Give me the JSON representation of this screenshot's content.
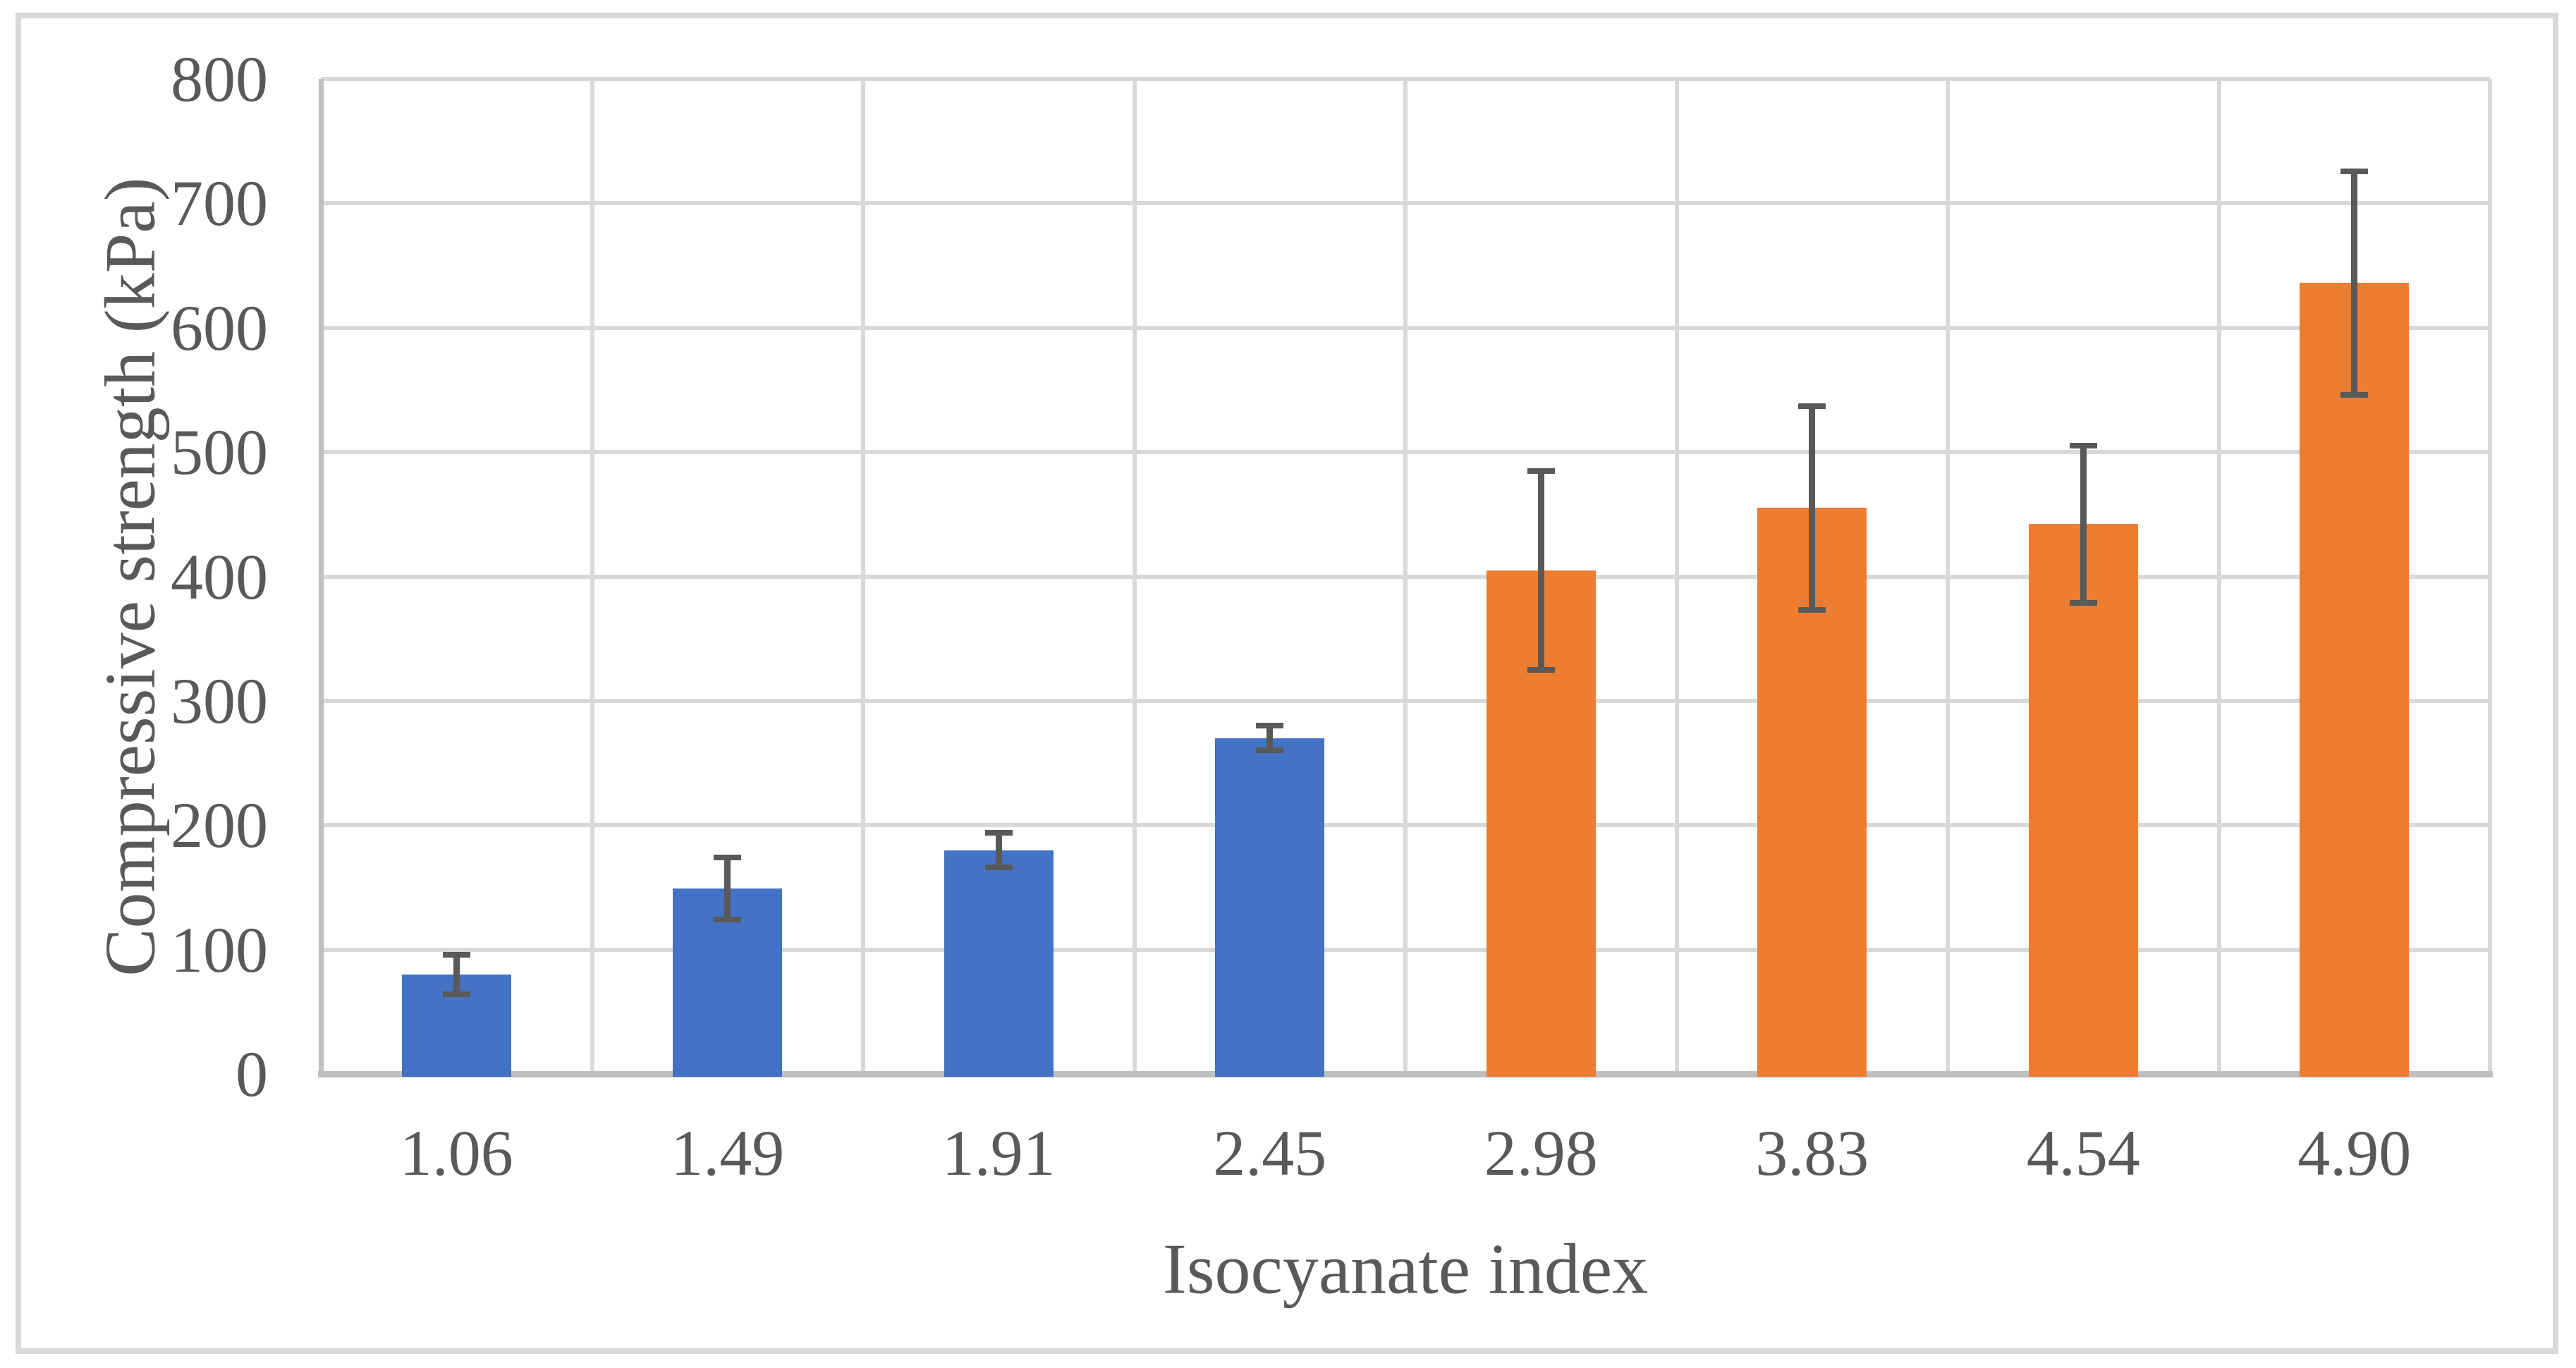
{
  "figure": {
    "background_color": "#ffffff",
    "border_color": "#d9d9d9"
  },
  "chart_data": {
    "type": "bar",
    "title": "",
    "xlabel": "Isocyanate index",
    "ylabel": "Compressive strength (kPa)",
    "categories": [
      "1.06",
      "1.49",
      "1.91",
      "2.45",
      "2.98",
      "3.83",
      "4.54",
      "4.90"
    ],
    "series": [
      {
        "name": "Compressive strength",
        "values": [
          80,
          149,
          180,
          270,
          405,
          455,
          442,
          636
        ],
        "error_plus": [
          16,
          25,
          14,
          10,
          80,
          82,
          63,
          90
        ],
        "error_minus": [
          16,
          25,
          14,
          10,
          80,
          82,
          63,
          90
        ],
        "bar_colors": [
          "#4472C4",
          "#4472C4",
          "#4472C4",
          "#4472C4",
          "#ED7D31",
          "#ED7D31",
          "#ED7D31",
          "#ED7D31"
        ]
      }
    ],
    "group_colors": {
      "blue_bars": "#4472C4",
      "orange_bars": "#ED7D31"
    },
    "error_bar_color": "#595959",
    "ylim": [
      0,
      800
    ],
    "ytick_interval": 100,
    "yticks": [
      "0",
      "100",
      "200",
      "300",
      "400",
      "500",
      "600",
      "700",
      "800"
    ],
    "grid": true,
    "gridline_color": "#d9d9d9",
    "axis_line_color": "#bfbfbf",
    "text_color": "#595959",
    "legend_position": "none"
  }
}
